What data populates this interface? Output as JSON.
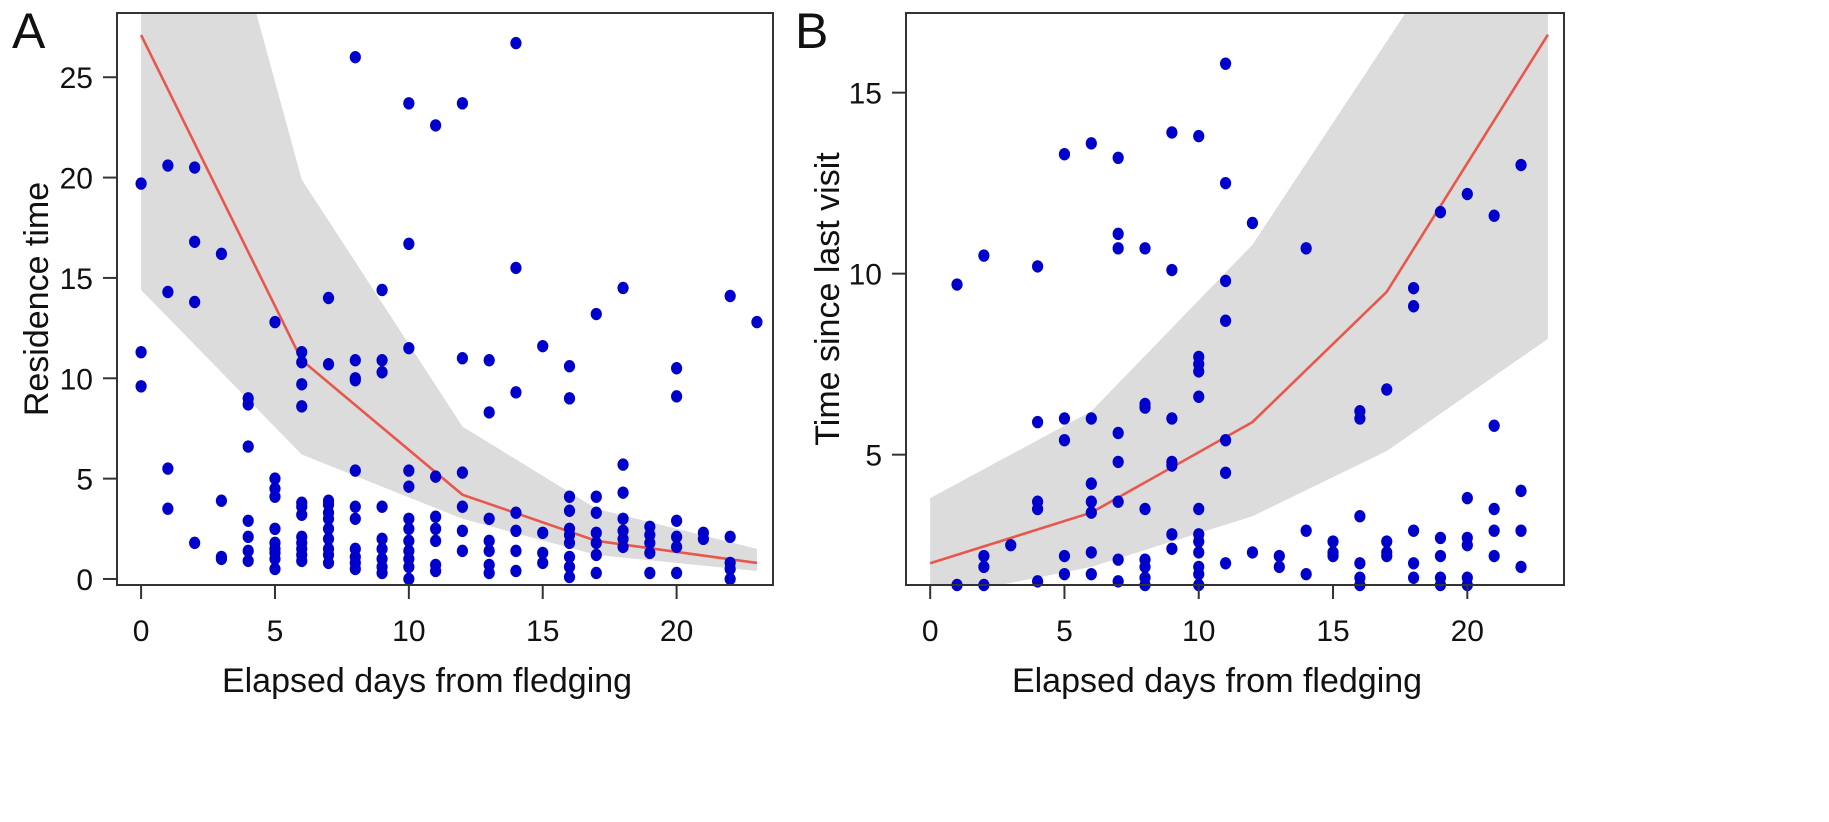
{
  "chart_data": [
    {
      "type": "scatter",
      "panel_label": "A",
      "title": "",
      "xlabel": "Elapsed days from fledging",
      "ylabel": "Residence time",
      "xlim": [
        -0.9,
        23.6
      ],
      "ylim": [
        -0.3,
        28.2
      ],
      "xticks": [
        0,
        5,
        10,
        15,
        20
      ],
      "yticks": [
        0,
        5,
        10,
        15,
        20,
        25
      ],
      "grid": false,
      "colors": {
        "points": "#0000cc",
        "fit": "#e8574c",
        "band": "#dcdcdc"
      },
      "points": [
        [
          0,
          19.7
        ],
        [
          0,
          11.3
        ],
        [
          0,
          9.6
        ],
        [
          1,
          20.6
        ],
        [
          1,
          14.3
        ],
        [
          1,
          5.5
        ],
        [
          1,
          3.5
        ],
        [
          2,
          20.5
        ],
        [
          2,
          16.8
        ],
        [
          2,
          13.8
        ],
        [
          2,
          1.8
        ],
        [
          3,
          16.2
        ],
        [
          3,
          3.9
        ],
        [
          3,
          1.1
        ],
        [
          3,
          1.0
        ],
        [
          4,
          9.0
        ],
        [
          4,
          8.7
        ],
        [
          4,
          6.6
        ],
        [
          4,
          2.9
        ],
        [
          4,
          2.1
        ],
        [
          4,
          1.4
        ],
        [
          4,
          0.9
        ],
        [
          5,
          12.8
        ],
        [
          5,
          5.0
        ],
        [
          5,
          4.5
        ],
        [
          5,
          4.1
        ],
        [
          5,
          2.5
        ],
        [
          5,
          1.8
        ],
        [
          5,
          1.5
        ],
        [
          5,
          1.3
        ],
        [
          5,
          1.0
        ],
        [
          5,
          0.5
        ],
        [
          6,
          11.3
        ],
        [
          6,
          10.8
        ],
        [
          6,
          9.7
        ],
        [
          6,
          8.6
        ],
        [
          6,
          3.8
        ],
        [
          6,
          3.6
        ],
        [
          6,
          3.2
        ],
        [
          6,
          2.1
        ],
        [
          6,
          1.8
        ],
        [
          6,
          1.5
        ],
        [
          6,
          1.2
        ],
        [
          6,
          0.9
        ],
        [
          7,
          14.0
        ],
        [
          7,
          10.7
        ],
        [
          7,
          3.9
        ],
        [
          7,
          3.7
        ],
        [
          7,
          3.3
        ],
        [
          7,
          3.0
        ],
        [
          7,
          2.5
        ],
        [
          7,
          2.0
        ],
        [
          7,
          1.5
        ],
        [
          7,
          1.2
        ],
        [
          7,
          0.8
        ],
        [
          8,
          26.0
        ],
        [
          8,
          10.9
        ],
        [
          8,
          10.0
        ],
        [
          8,
          9.9
        ],
        [
          8,
          5.4
        ],
        [
          8,
          3.6
        ],
        [
          8,
          3.0
        ],
        [
          8,
          1.5
        ],
        [
          8,
          1.1
        ],
        [
          8,
          0.8
        ],
        [
          8,
          0.5
        ],
        [
          9,
          14.4
        ],
        [
          9,
          10.9
        ],
        [
          9,
          10.3
        ],
        [
          9,
          3.6
        ],
        [
          9,
          2.0
        ],
        [
          9,
          1.5
        ],
        [
          9,
          1.0
        ],
        [
          9,
          0.6
        ],
        [
          9,
          0.3
        ],
        [
          10,
          23.7
        ],
        [
          10,
          16.7
        ],
        [
          10,
          11.5
        ],
        [
          10,
          5.4
        ],
        [
          10,
          4.6
        ],
        [
          10,
          3.0
        ],
        [
          10,
          2.5
        ],
        [
          10,
          1.9
        ],
        [
          10,
          1.4
        ],
        [
          10,
          1.0
        ],
        [
          10,
          0.6
        ],
        [
          10,
          0.0
        ],
        [
          11,
          22.6
        ],
        [
          11,
          5.1
        ],
        [
          11,
          3.1
        ],
        [
          11,
          2.5
        ],
        [
          11,
          1.9
        ],
        [
          11,
          0.7
        ],
        [
          11,
          0.4
        ],
        [
          12,
          23.7
        ],
        [
          12,
          11.0
        ],
        [
          12,
          5.3
        ],
        [
          12,
          3.6
        ],
        [
          12,
          2.4
        ],
        [
          12,
          1.4
        ],
        [
          13,
          10.9
        ],
        [
          13,
          8.3
        ],
        [
          13,
          3.0
        ],
        [
          13,
          1.9
        ],
        [
          13,
          1.4
        ],
        [
          13,
          0.7
        ],
        [
          13,
          0.3
        ],
        [
          14,
          26.7
        ],
        [
          14,
          15.5
        ],
        [
          14,
          9.3
        ],
        [
          14,
          3.3
        ],
        [
          14,
          2.4
        ],
        [
          14,
          1.4
        ],
        [
          14,
          0.4
        ],
        [
          15,
          11.6
        ],
        [
          15,
          2.3
        ],
        [
          15,
          1.3
        ],
        [
          15,
          0.8
        ],
        [
          16,
          10.6
        ],
        [
          16,
          9.0
        ],
        [
          16,
          4.1
        ],
        [
          16,
          3.4
        ],
        [
          16,
          2.5
        ],
        [
          16,
          2.2
        ],
        [
          16,
          1.8
        ],
        [
          16,
          1.1
        ],
        [
          16,
          0.6
        ],
        [
          16,
          0.1
        ],
        [
          17,
          13.2
        ],
        [
          17,
          4.1
        ],
        [
          17,
          3.3
        ],
        [
          17,
          2.3
        ],
        [
          17,
          1.8
        ],
        [
          17,
          1.2
        ],
        [
          17,
          0.3
        ],
        [
          18,
          14.5
        ],
        [
          18,
          5.7
        ],
        [
          18,
          4.3
        ],
        [
          18,
          3.0
        ],
        [
          18,
          2.4
        ],
        [
          18,
          2.0
        ],
        [
          18,
          1.6
        ],
        [
          19,
          2.6
        ],
        [
          19,
          2.2
        ],
        [
          19,
          1.8
        ],
        [
          19,
          1.3
        ],
        [
          19,
          0.3
        ],
        [
          20,
          10.5
        ],
        [
          20,
          9.1
        ],
        [
          20,
          2.9
        ],
        [
          20,
          2.1
        ],
        [
          20,
          1.6
        ],
        [
          20,
          0.3
        ],
        [
          21,
          2.3
        ],
        [
          21,
          2.0
        ],
        [
          22,
          14.1
        ],
        [
          22,
          2.1
        ],
        [
          22,
          0.8
        ],
        [
          22,
          0.5
        ],
        [
          22,
          0.0
        ],
        [
          23,
          12.8
        ]
      ],
      "fit_line": [
        [
          0,
          27.1
        ],
        [
          6,
          10.9
        ],
        [
          12,
          4.2
        ],
        [
          17,
          1.9
        ],
        [
          23,
          0.8
        ]
      ],
      "band_upper": [
        [
          0,
          28.2
        ],
        [
          4.3,
          28.2
        ],
        [
          6,
          19.9
        ],
        [
          12,
          7.6
        ],
        [
          17,
          3.5
        ],
        [
          23,
          1.5
        ]
      ],
      "band_lower": [
        [
          0,
          14.4
        ],
        [
          6,
          6.2
        ],
        [
          12,
          3.0
        ],
        [
          17,
          1.2
        ],
        [
          23,
          0.4
        ]
      ]
    },
    {
      "type": "scatter",
      "panel_label": "B",
      "title": "",
      "xlabel": "Elapsed days from fledging",
      "ylabel": "Time since last visit",
      "xlim": [
        -0.9,
        23.6
      ],
      "ylim": [
        1.4,
        17.2
      ],
      "xticks": [
        0,
        5,
        10,
        15,
        20
      ],
      "yticks": [
        5,
        10,
        15
      ],
      "grid": false,
      "colors": {
        "points": "#0000cc",
        "fit": "#e8574c",
        "band": "#dcdcdc"
      },
      "points": [
        [
          1,
          9.7
        ],
        [
          1,
          1.4
        ],
        [
          2,
          10.5
        ],
        [
          2,
          2.2
        ],
        [
          2,
          1.9
        ],
        [
          2,
          1.4
        ],
        [
          3,
          2.5
        ],
        [
          4,
          10.2
        ],
        [
          4,
          5.9
        ],
        [
          4,
          3.7
        ],
        [
          4,
          3.5
        ],
        [
          4,
          1.5
        ],
        [
          5,
          13.3
        ],
        [
          5,
          6.0
        ],
        [
          5,
          5.4
        ],
        [
          5,
          2.2
        ],
        [
          5,
          1.7
        ],
        [
          6,
          13.6
        ],
        [
          6,
          6.0
        ],
        [
          6,
          4.2
        ],
        [
          6,
          3.7
        ],
        [
          6,
          3.4
        ],
        [
          6,
          2.3
        ],
        [
          6,
          1.7
        ],
        [
          7,
          13.2
        ],
        [
          7,
          11.1
        ],
        [
          7,
          10.7
        ],
        [
          7,
          5.6
        ],
        [
          7,
          4.8
        ],
        [
          7,
          3.7
        ],
        [
          7,
          2.1
        ],
        [
          7,
          1.5
        ],
        [
          8,
          10.7
        ],
        [
          8,
          6.4
        ],
        [
          8,
          6.3
        ],
        [
          8,
          3.5
        ],
        [
          8,
          2.1
        ],
        [
          8,
          1.9
        ],
        [
          8,
          1.6
        ],
        [
          8,
          1.4
        ],
        [
          9,
          13.9
        ],
        [
          9,
          10.1
        ],
        [
          9,
          6.0
        ],
        [
          9,
          4.8
        ],
        [
          9,
          4.7
        ],
        [
          9,
          2.8
        ],
        [
          9,
          2.4
        ],
        [
          10,
          13.8
        ],
        [
          10,
          7.7
        ],
        [
          10,
          7.5
        ],
        [
          10,
          7.3
        ],
        [
          10,
          6.6
        ],
        [
          10,
          3.5
        ],
        [
          10,
          2.8
        ],
        [
          10,
          2.6
        ],
        [
          10,
          2.3
        ],
        [
          10,
          1.9
        ],
        [
          10,
          1.7
        ],
        [
          10,
          1.4
        ],
        [
          11,
          15.8
        ],
        [
          11,
          12.5
        ],
        [
          11,
          9.8
        ],
        [
          11,
          8.7
        ],
        [
          11,
          5.4
        ],
        [
          11,
          4.5
        ],
        [
          11,
          2.0
        ],
        [
          12,
          11.4
        ],
        [
          12,
          2.3
        ],
        [
          13,
          2.2
        ],
        [
          13,
          1.9
        ],
        [
          14,
          10.7
        ],
        [
          14,
          2.9
        ],
        [
          14,
          1.7
        ],
        [
          15,
          2.6
        ],
        [
          15,
          2.3
        ],
        [
          15,
          2.2
        ],
        [
          16,
          6.2
        ],
        [
          16,
          6.0
        ],
        [
          16,
          3.3
        ],
        [
          16,
          2.0
        ],
        [
          16,
          1.6
        ],
        [
          16,
          1.4
        ],
        [
          17,
          6.8
        ],
        [
          17,
          2.6
        ],
        [
          17,
          2.3
        ],
        [
          17,
          2.2
        ],
        [
          18,
          9.6
        ],
        [
          18,
          9.1
        ],
        [
          18,
          2.9
        ],
        [
          18,
          2.0
        ],
        [
          18,
          1.6
        ],
        [
          19,
          11.7
        ],
        [
          19,
          2.7
        ],
        [
          19,
          2.2
        ],
        [
          19,
          1.6
        ],
        [
          19,
          1.4
        ],
        [
          20,
          12.2
        ],
        [
          20,
          3.8
        ],
        [
          20,
          2.7
        ],
        [
          20,
          2.5
        ],
        [
          20,
          1.6
        ],
        [
          20,
          1.4
        ],
        [
          21,
          11.6
        ],
        [
          21,
          5.8
        ],
        [
          21,
          3.5
        ],
        [
          21,
          2.9
        ],
        [
          21,
          2.2
        ],
        [
          22,
          13.0
        ],
        [
          22,
          4.0
        ],
        [
          22,
          2.9
        ],
        [
          22,
          1.9
        ]
      ],
      "fit_line": [
        [
          0,
          2.0
        ],
        [
          6,
          3.4
        ],
        [
          12,
          5.9
        ],
        [
          17,
          9.5
        ],
        [
          23,
          16.6
        ]
      ],
      "band_upper": [
        [
          0,
          3.8
        ],
        [
          6,
          6.2
        ],
        [
          12,
          10.8
        ],
        [
          17.7,
          17.2
        ],
        [
          23,
          17.2
        ]
      ],
      "band_lower": [
        [
          0,
          1.4
        ],
        [
          2.6,
          1.4
        ],
        [
          6,
          1.9
        ],
        [
          12,
          3.3
        ],
        [
          17,
          5.1
        ],
        [
          23,
          8.2
        ]
      ]
    }
  ]
}
